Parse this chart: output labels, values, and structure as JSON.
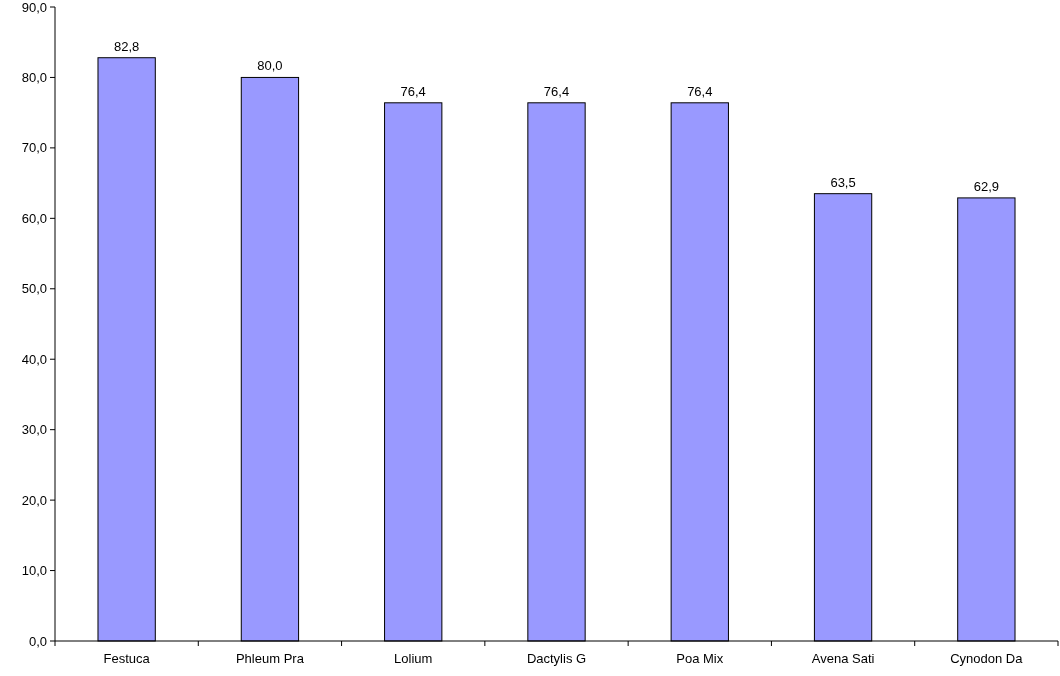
{
  "chart_data": {
    "type": "bar",
    "categories": [
      "Festuca",
      "Phleum Pra",
      "Lolium",
      "Dactylis G",
      "Poa Mix",
      "Avena Sati",
      "Cynodon Da"
    ],
    "values": [
      82.8,
      80.0,
      76.4,
      76.4,
      76.4,
      63.5,
      62.9
    ],
    "value_labels": [
      "82,8",
      "80,0",
      "76,4",
      "76,4",
      "76,4",
      "63,5",
      "62,9"
    ],
    "color": "#9999ff",
    "ylim": [
      0,
      90
    ],
    "yticks": [
      {
        "value": 0,
        "label": "0,0"
      },
      {
        "value": 10,
        "label": "10,0"
      },
      {
        "value": 20,
        "label": "20,0"
      },
      {
        "value": 30,
        "label": "30,0"
      },
      {
        "value": 40,
        "label": "40,0"
      },
      {
        "value": 50,
        "label": "50,0"
      },
      {
        "value": 60,
        "label": "60,0"
      },
      {
        "value": 70,
        "label": "70,0"
      },
      {
        "value": 80,
        "label": "80,0"
      },
      {
        "value": 90,
        "label": "90,0"
      }
    ],
    "grid": false
  }
}
